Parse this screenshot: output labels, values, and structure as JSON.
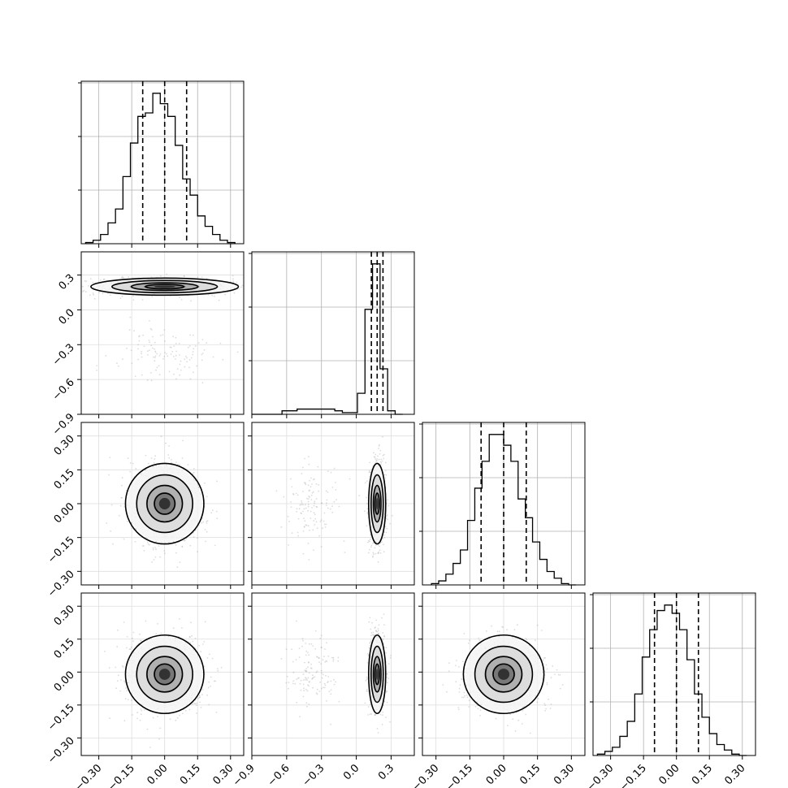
{
  "chart_data": {
    "type": "corner",
    "grid": true,
    "variables": [
      {
        "label": "",
        "range": [
          -0.38,
          0.36
        ],
        "ticks": [
          "-0.30",
          "-0.15",
          "0.00",
          "0.15",
          "0.30"
        ],
        "tick_values": [
          -0.3,
          -0.15,
          0.0,
          0.15,
          0.3
        ],
        "quantiles": [
          -0.1,
          0.0,
          0.1
        ]
      },
      {
        "label": "",
        "range": [
          -0.9,
          0.5
        ],
        "ticks": [
          "-0.9",
          "-0.6",
          "-0.3",
          "0.0",
          "0.3"
        ],
        "tick_values": [
          -0.9,
          -0.6,
          -0.3,
          0.0,
          0.3
        ],
        "quantiles": [
          0.13,
          0.18,
          0.23
        ]
      },
      {
        "label": "",
        "range": [
          -0.36,
          0.36
        ],
        "ticks": [
          "-0.30",
          "-0.15",
          "0.00",
          "0.15",
          "0.30"
        ],
        "tick_values": [
          -0.3,
          -0.15,
          0.0,
          0.15,
          0.3
        ],
        "quantiles": [
          -0.1,
          0.0,
          0.1
        ]
      },
      {
        "label": "",
        "range": [
          -0.38,
          0.36
        ],
        "ticks": [
          "-0.30",
          "-0.15",
          "0.00",
          "0.15",
          "0.30"
        ],
        "tick_values": [
          -0.3,
          -0.15,
          0.0,
          0.15,
          0.3
        ],
        "quantiles": [
          -0.1,
          0.0,
          0.1
        ]
      }
    ],
    "histograms": [
      {
        "bins": [
          -0.36,
          0.32
        ],
        "counts": [
          1,
          3,
          8,
          18,
          30,
          58,
          87,
          110,
          113,
          130,
          121,
          110,
          85,
          56,
          42,
          24,
          15,
          8,
          3,
          1
        ]
      },
      {
        "bins": [
          -0.9,
          0.4
        ],
        "counts": [
          0,
          0,
          0,
          0,
          2,
          2,
          3,
          3,
          3,
          3,
          3,
          2,
          1,
          1,
          12,
          60,
          86,
          26,
          2,
          0
        ]
      },
      {
        "bins": [
          -0.32,
          0.32
        ],
        "counts": [
          1,
          3,
          8,
          16,
          26,
          48,
          72,
          92,
          112,
          112,
          104,
          92,
          64,
          50,
          32,
          19,
          10,
          5,
          1,
          0
        ]
      },
      {
        "bins": [
          -0.36,
          0.32
        ],
        "counts": [
          1,
          3,
          6,
          14,
          25,
          45,
          72,
          92,
          106,
          110,
          104,
          92,
          70,
          45,
          28,
          16,
          8,
          4,
          1,
          0
        ]
      }
    ],
    "pairs": [
      {
        "x": 0,
        "y": 1,
        "centers": [
          [
            0.0,
            0.2,
            0.16,
            0.035,
            1.0
          ],
          [
            0.0,
            -0.38,
            0.11,
            0.12,
            0.08
          ]
        ]
      },
      {
        "x": 0,
        "y": 2,
        "centers": [
          [
            0.0,
            0.0,
            0.085,
            0.085,
            1.0
          ]
        ]
      },
      {
        "x": 1,
        "y": 2,
        "centers": [
          [
            0.18,
            0.0,
            0.035,
            0.085,
            1.0
          ],
          [
            -0.38,
            0.0,
            0.12,
            0.085,
            0.1
          ]
        ]
      },
      {
        "x": 0,
        "y": 3,
        "centers": [
          [
            0.0,
            -0.01,
            0.085,
            0.085,
            1.0
          ]
        ]
      },
      {
        "x": 1,
        "y": 3,
        "centers": [
          [
            0.18,
            -0.01,
            0.035,
            0.085,
            1.0
          ],
          [
            -0.38,
            -0.01,
            0.12,
            0.085,
            0.1
          ]
        ]
      },
      {
        "x": 2,
        "y": 3,
        "centers": [
          [
            0.0,
            -0.01,
            0.085,
            0.085,
            1.0
          ]
        ]
      }
    ]
  }
}
